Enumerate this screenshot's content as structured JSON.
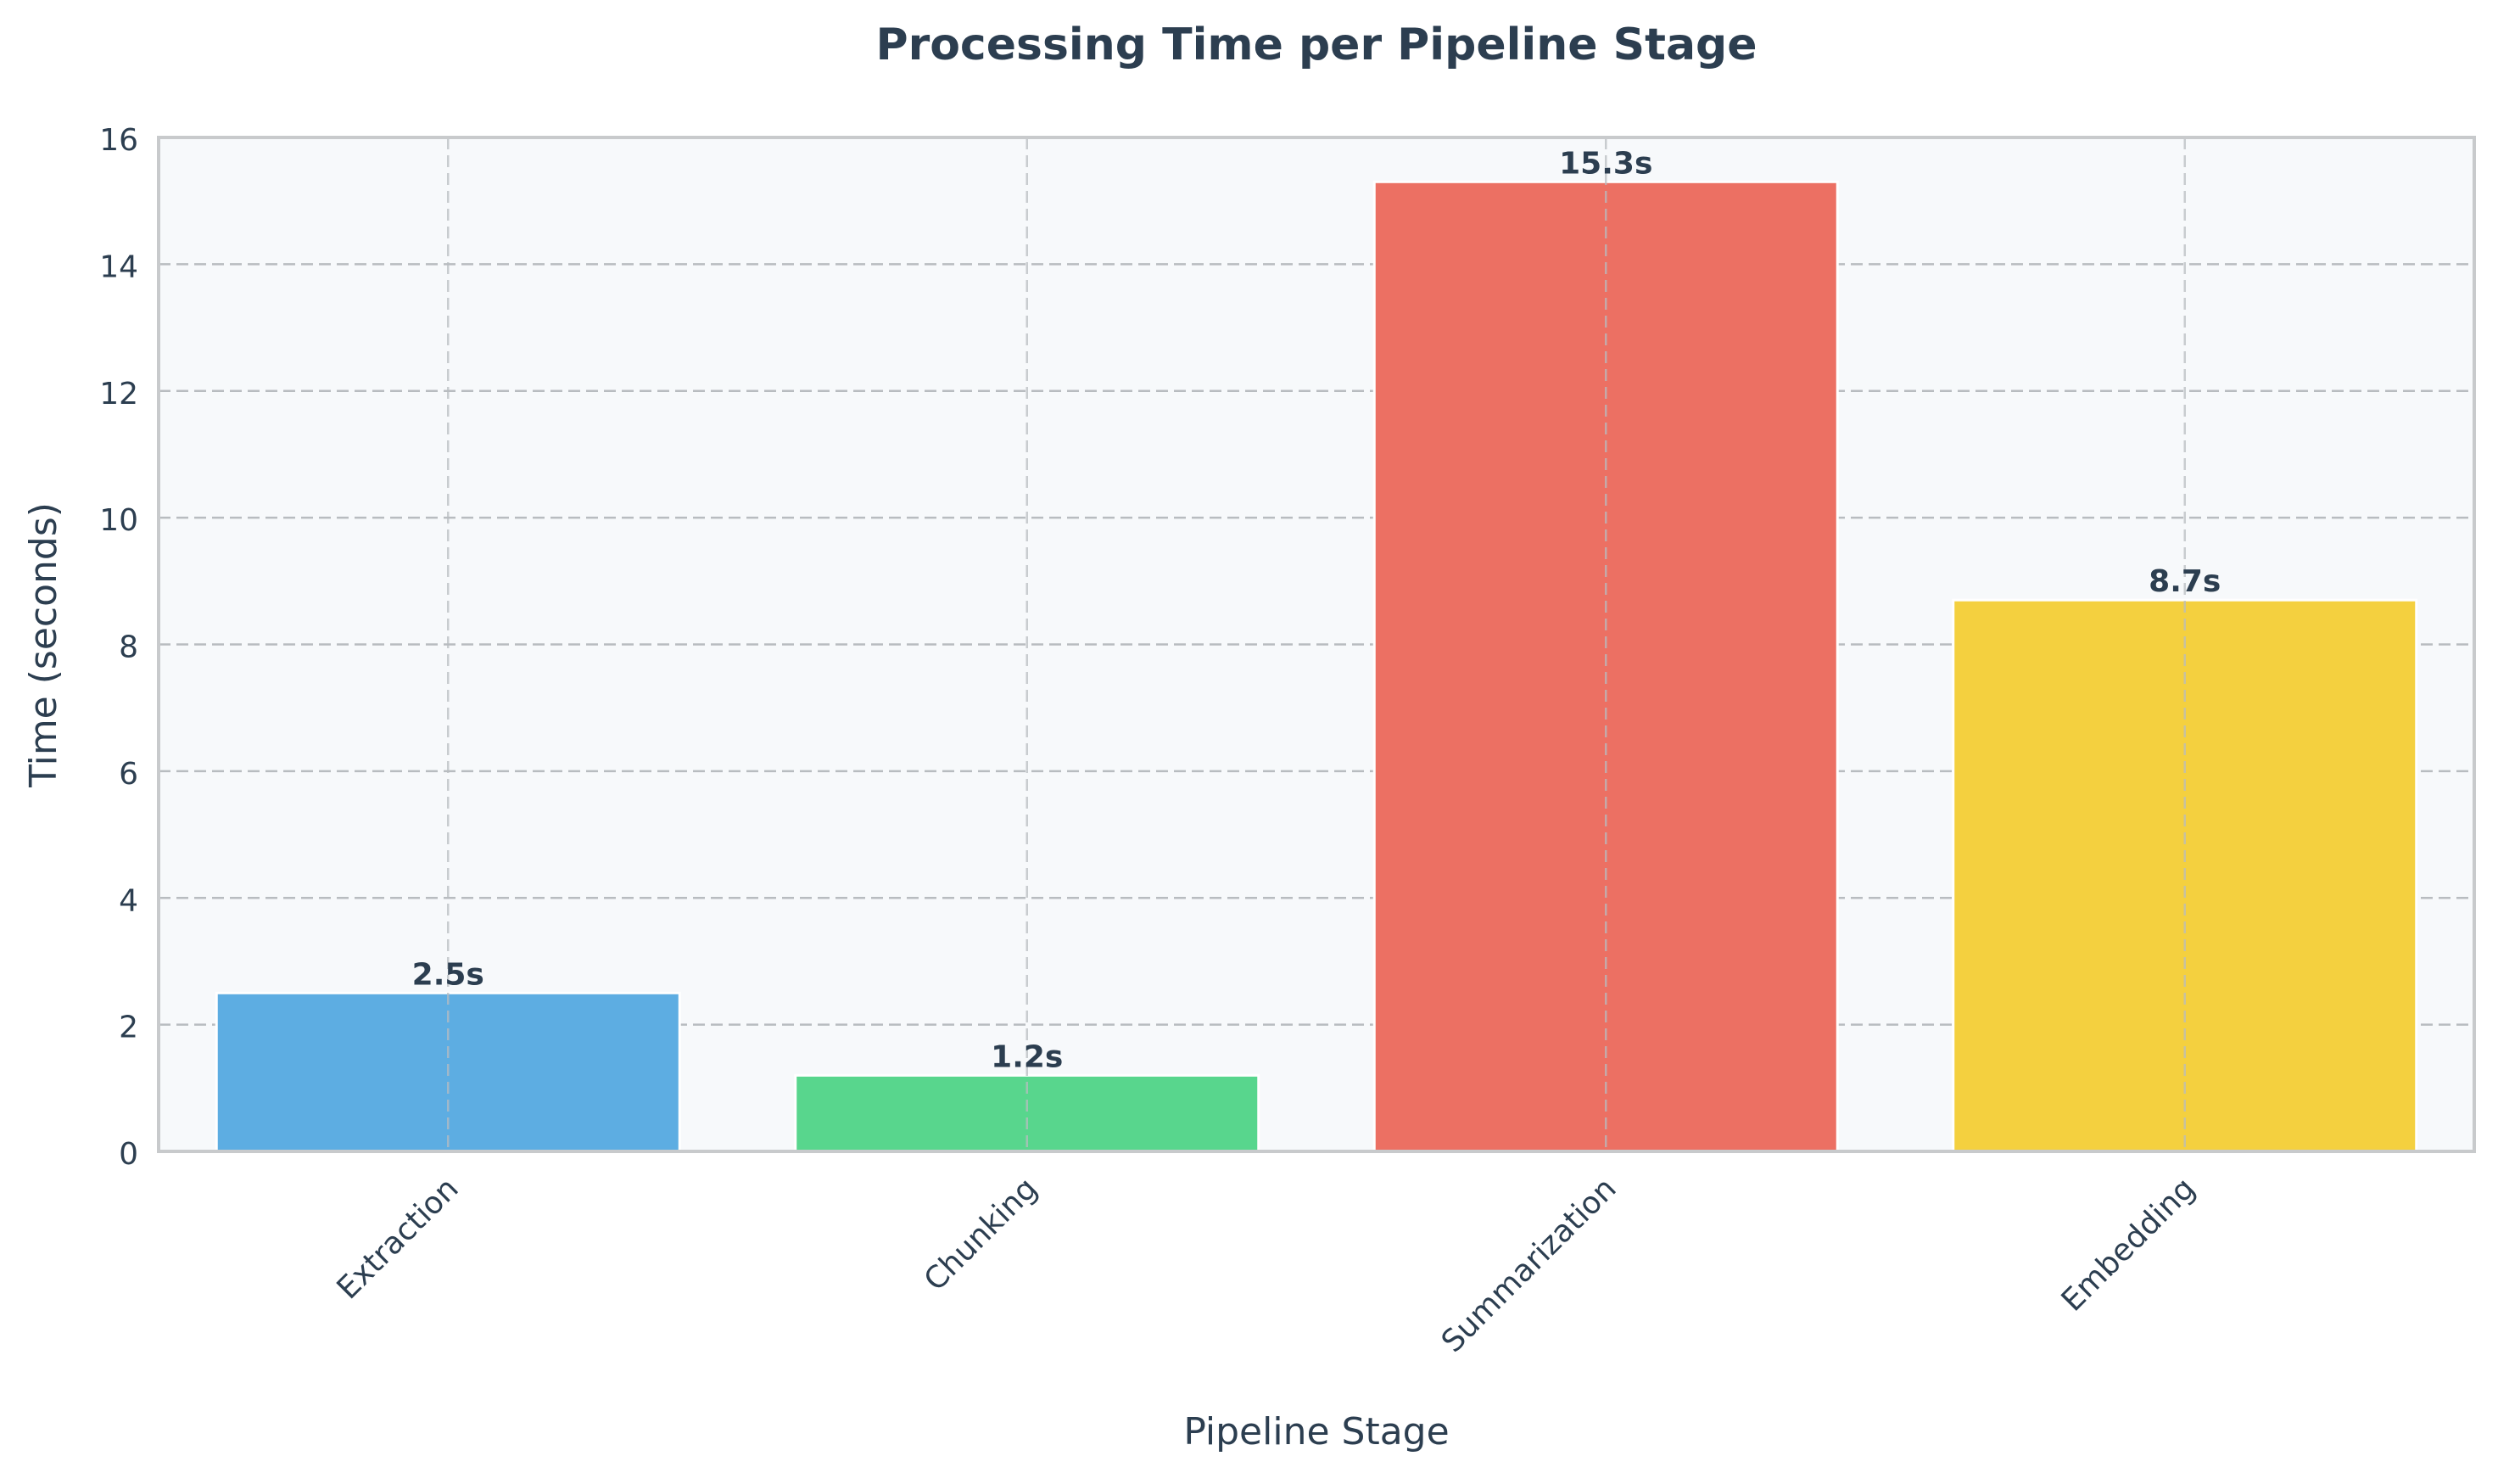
{
  "chart_data": {
    "type": "bar",
    "title": "Processing Time per Pipeline Stage",
    "xlabel": "Pipeline Stage",
    "ylabel": "Time (seconds)",
    "categories": [
      "Extraction",
      "Chunking",
      "Summarization",
      "Embedding"
    ],
    "values": [
      2.5,
      1.2,
      15.3,
      8.7
    ],
    "value_labels": [
      "2.5s",
      "1.2s",
      "15.3s",
      "8.7s"
    ],
    "bar_colors": [
      "#5DADE2",
      "#58D68D",
      "#EC7063",
      "#F4D03F"
    ],
    "ylim": [
      0,
      16
    ],
    "yticks": [
      "0",
      "2",
      "4",
      "6",
      "8",
      "10",
      "12",
      "14",
      "16"
    ],
    "grid": true,
    "legend": null
  },
  "colors": {
    "text": "#2c3e50",
    "plot_background": "#f7f9fb",
    "axis_frame": "#c8cacc",
    "grid": "#b8bcc0"
  }
}
